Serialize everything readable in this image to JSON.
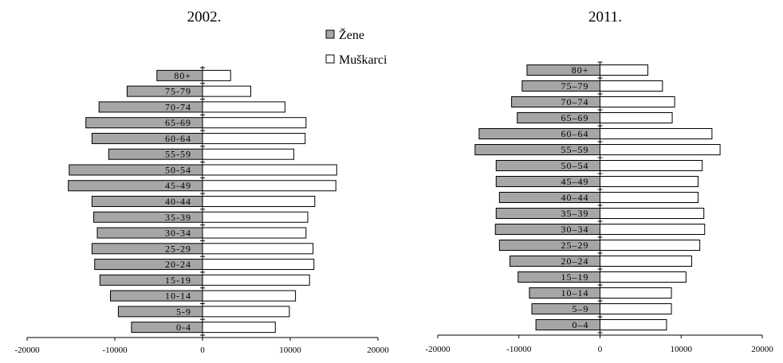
{
  "legend": {
    "female_label": "Žene",
    "male_label": "Muškarci"
  },
  "colors": {
    "female": "#a6a6a6",
    "male": "#ffffff",
    "stroke": "#000000"
  },
  "chart_data": [
    {
      "type": "bar",
      "orientation": "horizontal",
      "title": "2002.",
      "categories": [
        "80+",
        "75-79",
        "70-74",
        "65-69",
        "60-64",
        "55-59",
        "50-54",
        "45-49",
        "40-44",
        "35-39",
        "30-34",
        "25-29",
        "20-24",
        "15-19",
        "10-14",
        "5-9",
        "0-4"
      ],
      "series": [
        {
          "name": "Žene",
          "values": [
            -5200,
            -8600,
            -11800,
            -13300,
            -12600,
            -10700,
            -15200,
            -15300,
            -12600,
            -12400,
            -12000,
            -12600,
            -12300,
            -11700,
            -10500,
            -9600,
            -8100
          ]
        },
        {
          "name": "Muškarci",
          "values": [
            3200,
            5500,
            9400,
            11800,
            11700,
            10400,
            15300,
            15200,
            12800,
            12000,
            11800,
            12600,
            12700,
            12200,
            10600,
            9900,
            8300
          ]
        }
      ],
      "xlim": [
        -20000,
        20000
      ],
      "xticks": [
        "-20000",
        "-10000",
        "0",
        "10000",
        "20000"
      ],
      "grid": false
    },
    {
      "type": "bar",
      "orientation": "horizontal",
      "title": "2011.",
      "categories": [
        "80+",
        "75–79",
        "70–74",
        "65–69",
        "60–64",
        "55–59",
        "50–54",
        "45–49",
        "40–44",
        "35–39",
        "30–34",
        "25–29",
        "20–24",
        "15–19",
        "10–14",
        "5–9",
        "0–4"
      ],
      "series": [
        {
          "name": "Žene",
          "values": [
            -9000,
            -9600,
            -10900,
            -10200,
            -14900,
            -15400,
            -12800,
            -12800,
            -12400,
            -12800,
            -12900,
            -12400,
            -11100,
            -10100,
            -8700,
            -8400,
            -7900
          ]
        },
        {
          "name": "Muškarci",
          "values": [
            5900,
            7700,
            9200,
            8900,
            13800,
            14800,
            12600,
            12100,
            12100,
            12800,
            12900,
            12300,
            11300,
            10600,
            8800,
            8800,
            8200
          ]
        }
      ],
      "xlim": [
        -20000,
        20000
      ],
      "xticks": [
        "-20000",
        "-10000",
        "0",
        "10000",
        "20000"
      ],
      "grid": false
    }
  ]
}
